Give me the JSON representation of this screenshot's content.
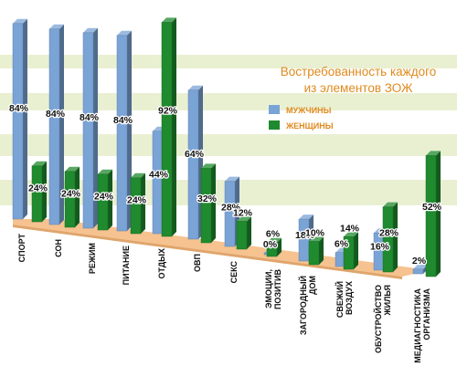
{
  "chart_data": {
    "type": "bar",
    "title_lines": [
      "Востребованность каждого",
      "из элементов ЗОЖ"
    ],
    "categories": [
      [
        "СПОРТ"
      ],
      [
        "СОН"
      ],
      [
        "РЕЖИМ"
      ],
      [
        "ПИТАНИЕ"
      ],
      [
        "ОТДЫХ"
      ],
      [
        "ОВП"
      ],
      [
        "СЕКС"
      ],
      [
        "ЭМОЦИИ,",
        "ПОЗИТИВ"
      ],
      [
        "ЗАГОРОДНЫЙ",
        "ДОМ"
      ],
      [
        "СВЕЖИЙ",
        "ВОЗДУХ"
      ],
      [
        "ОБУСТРОЙСТВО",
        "ЖИЛЬЯ"
      ],
      [
        "МЕДИАГНОСТИКА",
        "ОРГАНИЗМА"
      ]
    ],
    "series": [
      {
        "name": "МУЖЧИНЫ",
        "color": "#7aa3d6",
        "values": [
          84,
          84,
          84,
          84,
          44,
          64,
          28,
          0,
          18,
          6,
          16,
          2
        ]
      },
      {
        "name": "ЖЕНЩИНЫ",
        "color": "#1f8a2e",
        "values": [
          24,
          24,
          24,
          24,
          92,
          32,
          12,
          6,
          10,
          14,
          28,
          52
        ]
      }
    ],
    "value_suffix": "%",
    "ylim": [
      0,
      100
    ],
    "legend_position": "right, below title"
  }
}
